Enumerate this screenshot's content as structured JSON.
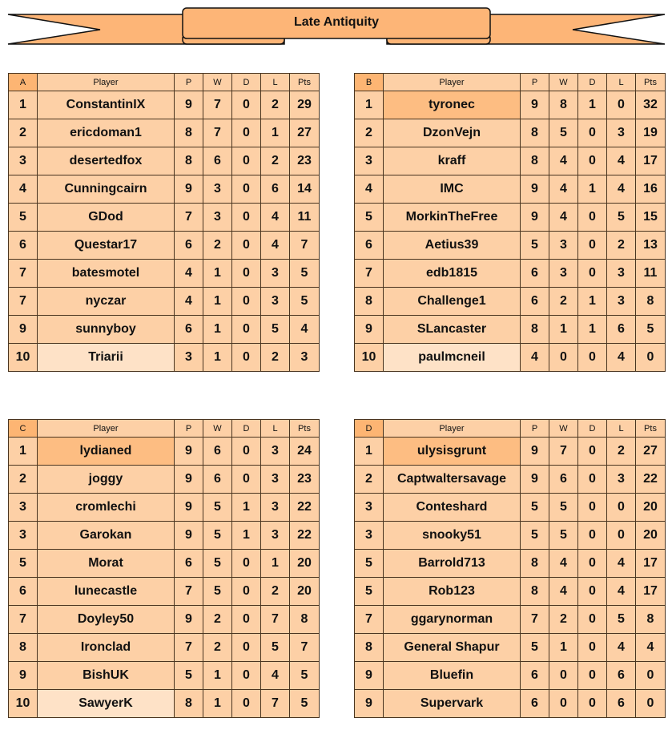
{
  "title": "Late Antiquity",
  "colors": {
    "cell": "#fdd0a6",
    "header_letter": "#fdb573",
    "leader": "#fdbd82",
    "last": "#fee2c7",
    "border": "#4a3520"
  },
  "columns": [
    "Player",
    "P",
    "W",
    "D",
    "L",
    "Pts"
  ],
  "groups": [
    {
      "letter": "A",
      "highlight_first": false,
      "light_last": true,
      "rows": [
        [
          "1",
          "ConstantinIX",
          "9",
          "7",
          "0",
          "2",
          "29"
        ],
        [
          "2",
          "ericdoman1",
          "8",
          "7",
          "0",
          "1",
          "27"
        ],
        [
          "3",
          "desertedfox",
          "8",
          "6",
          "0",
          "2",
          "23"
        ],
        [
          "4",
          "Cunningcairn",
          "9",
          "3",
          "0",
          "6",
          "14"
        ],
        [
          "5",
          "GDod",
          "7",
          "3",
          "0",
          "4",
          "11"
        ],
        [
          "6",
          "Questar17",
          "6",
          "2",
          "0",
          "4",
          "7"
        ],
        [
          "7",
          "batesmotel",
          "4",
          "1",
          "0",
          "3",
          "5"
        ],
        [
          "7",
          "nyczar",
          "4",
          "1",
          "0",
          "3",
          "5"
        ],
        [
          "9",
          "sunnyboy",
          "6",
          "1",
          "0",
          "5",
          "4"
        ],
        [
          "10",
          "Triarii",
          "3",
          "1",
          "0",
          "2",
          "3"
        ]
      ]
    },
    {
      "letter": "B",
      "highlight_first": true,
      "light_last": true,
      "rows": [
        [
          "1",
          "tyronec",
          "9",
          "8",
          "1",
          "0",
          "32"
        ],
        [
          "2",
          "DzonVejn",
          "8",
          "5",
          "0",
          "3",
          "19"
        ],
        [
          "3",
          "kraff",
          "8",
          "4",
          "0",
          "4",
          "17"
        ],
        [
          "4",
          "IMC",
          "9",
          "4",
          "1",
          "4",
          "16"
        ],
        [
          "5",
          "MorkinTheFree",
          "9",
          "4",
          "0",
          "5",
          "15"
        ],
        [
          "6",
          "Aetius39",
          "5",
          "3",
          "0",
          "2",
          "13"
        ],
        [
          "7",
          "edb1815",
          "6",
          "3",
          "0",
          "3",
          "11"
        ],
        [
          "8",
          "Challenge1",
          "6",
          "2",
          "1",
          "3",
          "8"
        ],
        [
          "9",
          "SLancaster",
          "8",
          "1",
          "1",
          "6",
          "5"
        ],
        [
          "10",
          "paulmcneil",
          "4",
          "0",
          "0",
          "4",
          "0"
        ]
      ]
    },
    {
      "letter": "C",
      "highlight_first": true,
      "light_last": true,
      "rows": [
        [
          "1",
          "lydianed",
          "9",
          "6",
          "0",
          "3",
          "24"
        ],
        [
          "2",
          "joggy",
          "9",
          "6",
          "0",
          "3",
          "23"
        ],
        [
          "3",
          "cromlechi",
          "9",
          "5",
          "1",
          "3",
          "22"
        ],
        [
          "3",
          "Garokan",
          "9",
          "5",
          "1",
          "3",
          "22"
        ],
        [
          "5",
          "Morat",
          "6",
          "5",
          "0",
          "1",
          "20"
        ],
        [
          "6",
          "lunecastle",
          "7",
          "5",
          "0",
          "2",
          "20"
        ],
        [
          "7",
          "Doyley50",
          "9",
          "2",
          "0",
          "7",
          "8"
        ],
        [
          "8",
          "Ironclad",
          "7",
          "2",
          "0",
          "5",
          "7"
        ],
        [
          "9",
          "BishUK",
          "5",
          "1",
          "0",
          "4",
          "5"
        ],
        [
          "10",
          "SawyerK",
          "8",
          "1",
          "0",
          "7",
          "5"
        ]
      ]
    },
    {
      "letter": "D",
      "highlight_first": true,
      "light_last": false,
      "rows": [
        [
          "1",
          "ulysisgrunt",
          "9",
          "7",
          "0",
          "2",
          "27"
        ],
        [
          "2",
          "Captwaltersavage",
          "9",
          "6",
          "0",
          "3",
          "22"
        ],
        [
          "3",
          "Conteshard",
          "5",
          "5",
          "0",
          "0",
          "20"
        ],
        [
          "3",
          "snooky51",
          "5",
          "5",
          "0",
          "0",
          "20"
        ],
        [
          "5",
          "Barrold713",
          "8",
          "4",
          "0",
          "4",
          "17"
        ],
        [
          "5",
          "Rob123",
          "8",
          "4",
          "0",
          "4",
          "17"
        ],
        [
          "7",
          "ggarynorman",
          "7",
          "2",
          "0",
          "5",
          "8"
        ],
        [
          "8",
          "General Shapur",
          "5",
          "1",
          "0",
          "4",
          "4"
        ],
        [
          "9",
          "Bluefin",
          "6",
          "0",
          "0",
          "6",
          "0"
        ],
        [
          "9",
          "Supervark",
          "6",
          "0",
          "0",
          "6",
          "0"
        ]
      ]
    }
  ]
}
